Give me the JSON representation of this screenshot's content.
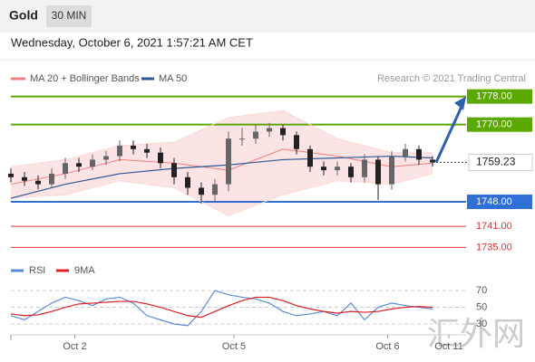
{
  "header": {
    "symbol": "Gold",
    "interval": "30 MIN",
    "timestamp": "Wednesday, October 6, 2021 1:57:21 AM CET",
    "credit": "Research © 2021 Trading Central",
    "watermark": "汇外网"
  },
  "chart_data": [
    {
      "type": "candlestick",
      "xlim": [
        -0.5,
        33.5
      ],
      "ylim": [
        1732,
        1781
      ],
      "open": [
        1756,
        1755,
        1754,
        1753,
        1756,
        1759,
        1758,
        1760,
        1761,
        1764,
        1763,
        1762,
        1759,
        1755,
        1752,
        1750,
        1753,
        1766,
        1766,
        1768,
        1769,
        1767,
        1763,
        1758,
        1757,
        1758,
        1755,
        1760,
        1753,
        1761,
        1763,
        1760
      ],
      "high": [
        1757.5,
        1756.5,
        1755.5,
        1757.5,
        1760.5,
        1760.5,
        1761.5,
        1762.5,
        1765.5,
        1765.5,
        1764.5,
        1763.5,
        1760.5,
        1756.5,
        1753.5,
        1754.5,
        1768,
        1769,
        1770,
        1770.5,
        1770,
        1768,
        1764,
        1759.5,
        1759.5,
        1759,
        1761.5,
        1761,
        1762.5,
        1764.5,
        1764,
        1761
      ],
      "low": [
        1753.5,
        1752.5,
        1751.5,
        1752,
        1754.5,
        1756.5,
        1757,
        1758.5,
        1759.5,
        1761.5,
        1760.5,
        1757.5,
        1753,
        1750,
        1747.5,
        1747.8,
        1751,
        1764,
        1764.5,
        1766.5,
        1765.5,
        1761.5,
        1756.5,
        1755.5,
        1755.5,
        1753.5,
        1753.5,
        1748.5,
        1751.5,
        1759.5,
        1758.5,
        1758
      ],
      "close": [
        1755,
        1754,
        1753,
        1756,
        1759,
        1758,
        1760,
        1761,
        1764,
        1763,
        1762,
        1759,
        1755,
        1752,
        1750,
        1753,
        1766,
        1766,
        1768,
        1769,
        1767,
        1763,
        1758,
        1757,
        1758,
        1755,
        1760,
        1753,
        1761,
        1763,
        1760,
        1759.23
      ],
      "up_color": "#666666",
      "down_color": "#222222",
      "bollinger": {
        "name": "MA 20 + Bollinger Bands",
        "color": "#f08080",
        "band_color": "#fbd9d9",
        "x": [
          0,
          4,
          8,
          12,
          16,
          20,
          24,
          28,
          31
        ],
        "ma": [
          1753,
          1756,
          1760,
          1759,
          1757,
          1763,
          1761,
          1758,
          1759
        ],
        "upper": [
          1758,
          1760,
          1764,
          1765,
          1772,
          1774,
          1766,
          1762,
          1762
        ],
        "lower": [
          1749,
          1750,
          1754,
          1752,
          1744,
          1750,
          1754,
          1753,
          1756
        ]
      },
      "ma50": {
        "name": "MA 50",
        "color": "#2b5797",
        "x": [
          0,
          4,
          8,
          12,
          16,
          20,
          24,
          28,
          31
        ],
        "values": [
          1749,
          1753,
          1756,
          1757.5,
          1758.5,
          1760,
          1760.5,
          1761,
          1760.5
        ]
      },
      "levels": [
        {
          "value": 1778,
          "label": "1778.00",
          "color": "#5aa800",
          "boxed": true
        },
        {
          "value": 1770,
          "label": "1770.00",
          "color": "#5aa800",
          "boxed": true
        },
        {
          "value": 1748,
          "label": "1748.00",
          "color": "#2f6fd6",
          "boxed": true
        },
        {
          "value": 1741,
          "label": "1741.00",
          "color": "#e03030",
          "boxed": false
        },
        {
          "value": 1735,
          "label": "1735.00",
          "color": "#e03030",
          "boxed": false
        }
      ],
      "last_price": {
        "value": 1759.23,
        "label": "1759.23",
        "color": "#222222"
      },
      "projection_color": "#2b5fb0"
    },
    {
      "type": "line",
      "xlim": [
        -0.5,
        33.5
      ],
      "ylim": [
        17,
        82
      ],
      "yticks": [
        70,
        50,
        30
      ],
      "xticks": [
        {
          "value": 4.7,
          "label": "Oct 2"
        },
        {
          "value": 16.4,
          "label": "Oct 5"
        },
        {
          "value": 27.7,
          "label": "Oct 6"
        },
        {
          "value": 32.2,
          "label": "Oct 11"
        }
      ],
      "series": [
        {
          "name": "RSI",
          "color": "#5b8bd8",
          "values": [
            40,
            35,
            45,
            55,
            62,
            58,
            52,
            60,
            62,
            55,
            40,
            35,
            30,
            28,
            45,
            70,
            65,
            62,
            60,
            55,
            45,
            40,
            42,
            45,
            40,
            55,
            35,
            50,
            55,
            52,
            50,
            48
          ]
        },
        {
          "name": "9MA",
          "color": "#e02020",
          "values": [
            42,
            40,
            41,
            45,
            50,
            54,
            55,
            56,
            57,
            57,
            54,
            50,
            45,
            40,
            38,
            45,
            52,
            58,
            62,
            62,
            58,
            52,
            48,
            45,
            43,
            45,
            44,
            45,
            48,
            50,
            51,
            50
          ]
        }
      ]
    }
  ]
}
